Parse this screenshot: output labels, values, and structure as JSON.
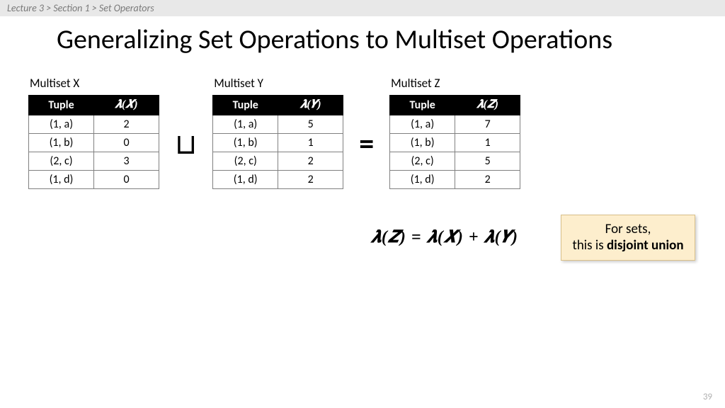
{
  "breadcrumb": "Lecture 3  >  Section 1  >  Set Operators",
  "title": "Generalizing Set Operations to Multiset Operations",
  "tables": [
    {
      "label": "Multiset X",
      "tuple_header": "Tuple",
      "lambda_header": "𝝀(𝑿)",
      "rows": [
        {
          "tuple": "(1, a)",
          "val": "2"
        },
        {
          "tuple": "(1, b)",
          "val": "0"
        },
        {
          "tuple": "(2, c)",
          "val": "3"
        },
        {
          "tuple": "(1, d)",
          "val": "0"
        }
      ]
    },
    {
      "label": "Multiset Y",
      "tuple_header": "Tuple",
      "lambda_header": "𝝀(𝒀)",
      "rows": [
        {
          "tuple": "(1, a)",
          "val": "5"
        },
        {
          "tuple": "(1, b)",
          "val": "1"
        },
        {
          "tuple": "(2, c)",
          "val": "2"
        },
        {
          "tuple": "(1, d)",
          "val": "2"
        }
      ]
    },
    {
      "label": "Multiset Z",
      "tuple_header": "Tuple",
      "lambda_header": "𝝀(𝒁)",
      "rows": [
        {
          "tuple": "(1, a)",
          "val": "7"
        },
        {
          "tuple": "(1, b)",
          "val": "1"
        },
        {
          "tuple": "(2, c)",
          "val": "5"
        },
        {
          "tuple": "(1, d)",
          "val": "2"
        }
      ]
    }
  ],
  "op_union": "⊔",
  "op_equals": "=",
  "formula": "𝝀(𝒁)  =  𝝀(𝑿)  +  𝝀(𝒀)",
  "note_line1": "For sets,",
  "note_line2a": "this is ",
  "note_bold": "disjoint union",
  "page_number": "39"
}
